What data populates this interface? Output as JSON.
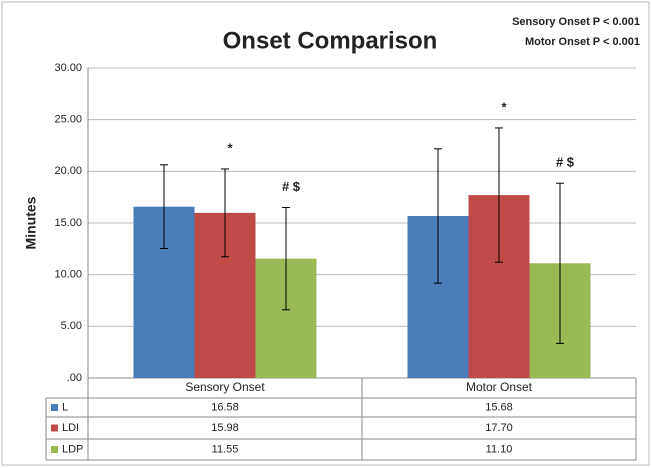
{
  "chart_data": {
    "type": "bar",
    "title": "Onset Comparison",
    "annotations": [
      "Sensory Onset P < 0.001",
      "Motor Onset P < 0.001"
    ],
    "y_label": "Minutes",
    "categories": [
      "Sensory Onset",
      "Motor Onset"
    ],
    "series": [
      {
        "name": "L",
        "color": "#4a7ebb",
        "values": [
          16.58,
          15.68
        ],
        "value_labels": [
          "16.58",
          "15.68"
        ],
        "errors": [
          4.05,
          6.5
        ]
      },
      {
        "name": "LDI",
        "color": "#be4b48",
        "values": [
          15.98,
          17.7
        ],
        "value_labels": [
          "15.98",
          "17.70"
        ],
        "errors": [
          4.25,
          6.5
        ],
        "markers": [
          "*",
          "*"
        ]
      },
      {
        "name": "LDP",
        "color": "#98b954",
        "values": [
          11.55,
          11.1
        ],
        "value_labels": [
          "11.55",
          "11.10"
        ],
        "errors": [
          4.95,
          7.75
        ],
        "markers": [
          "# $",
          "# $"
        ]
      }
    ],
    "ylim": [
      0,
      30
    ],
    "yticks": [
      {
        "value": 0,
        "label": ".00"
      },
      {
        "value": 5,
        "label": "5.00"
      },
      {
        "value": 10,
        "label": "10.00"
      },
      {
        "value": 15,
        "label": "15.00"
      },
      {
        "value": 20,
        "label": "20.00"
      },
      {
        "value": 25,
        "label": "25.00"
      },
      {
        "value": 30,
        "label": "30.00"
      }
    ],
    "grid": true
  }
}
